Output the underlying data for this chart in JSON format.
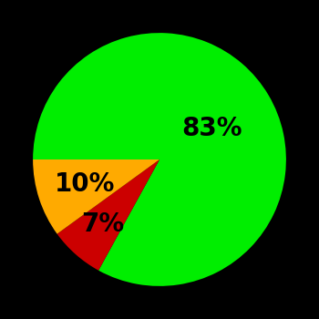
{
  "slices": [
    83,
    7,
    10
  ],
  "colors": [
    "#00ee00",
    "#cc0000",
    "#ffaa00"
  ],
  "labels": [
    "83%",
    "7%",
    "10%"
  ],
  "background_color": "#000000",
  "label_color": "#000000",
  "label_fontsize": 20,
  "label_fontweight": "bold",
  "startangle": 180,
  "counterclock": false,
  "figsize": [
    3.5,
    3.5
  ],
  "dpi": 100,
  "label_radii": [
    0.48,
    0.68,
    0.62
  ]
}
